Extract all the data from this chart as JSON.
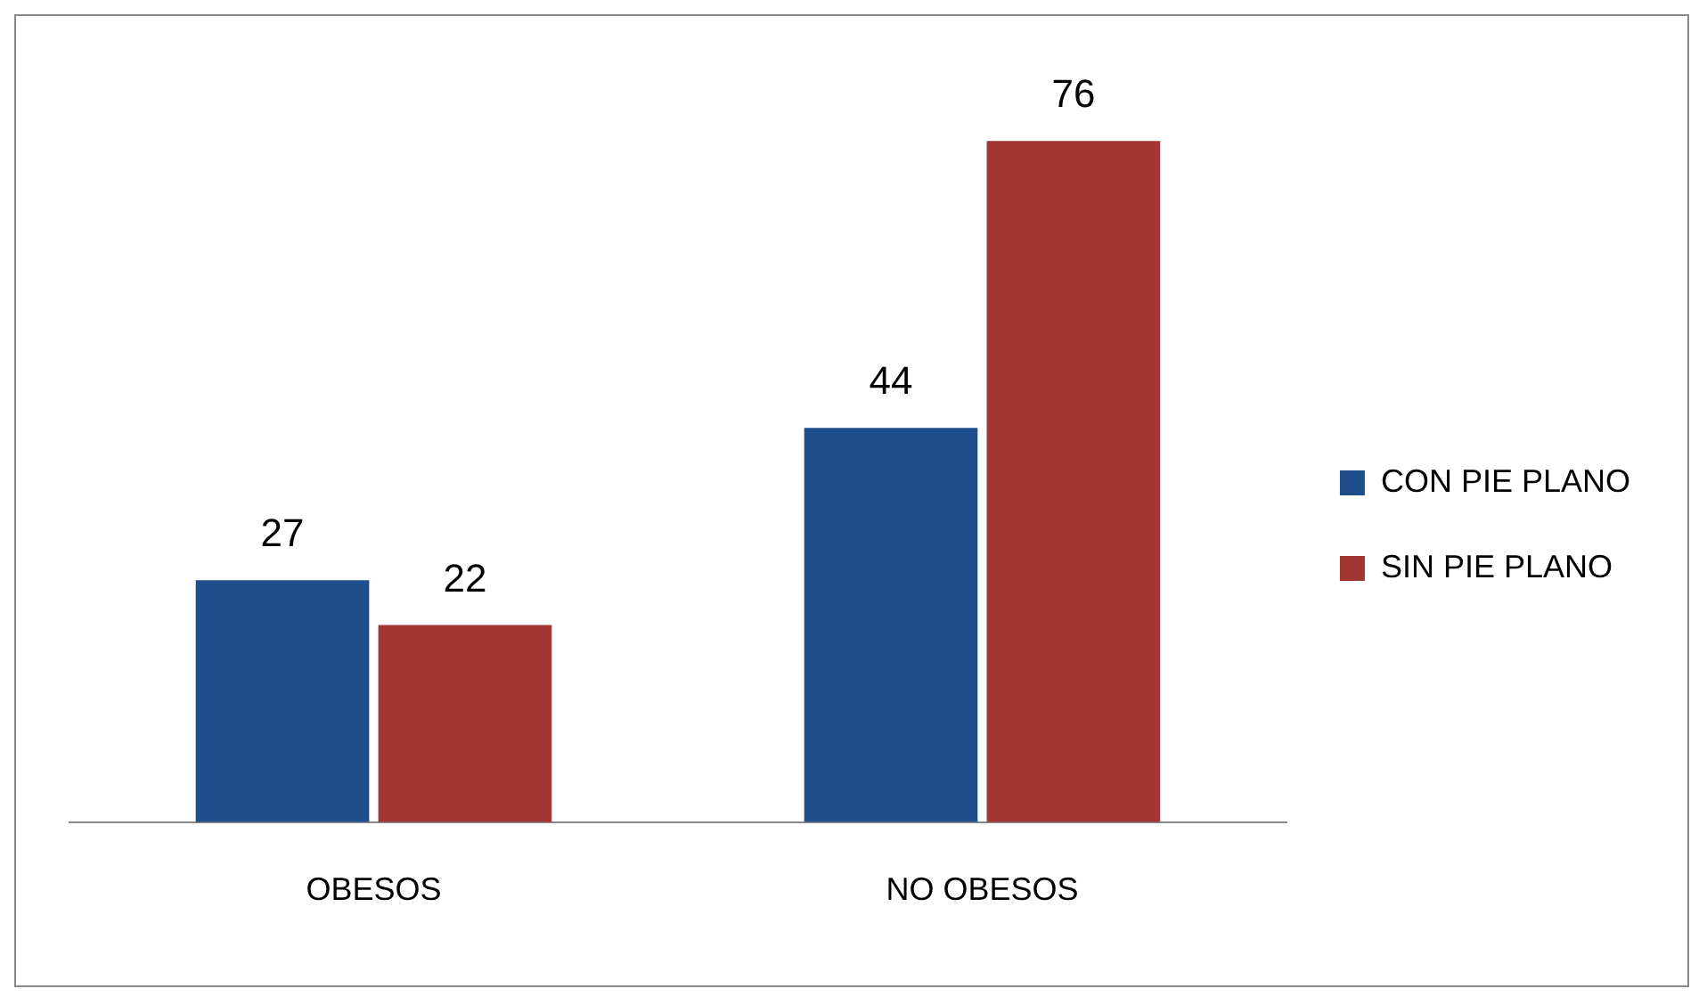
{
  "chart_data": {
    "type": "bar",
    "categories": [
      "OBESOS",
      "NO OBESOS"
    ],
    "series": [
      {
        "name": "CON PIE PLANO",
        "color": "#1f4e8c",
        "values": [
          27,
          44
        ]
      },
      {
        "name": "SIN PIE PLANO",
        "color": "#a33533",
        "values": [
          22,
          76
        ]
      }
    ],
    "data_labels": true,
    "legend": "right",
    "grid": false,
    "tick_labels": "x"
  }
}
